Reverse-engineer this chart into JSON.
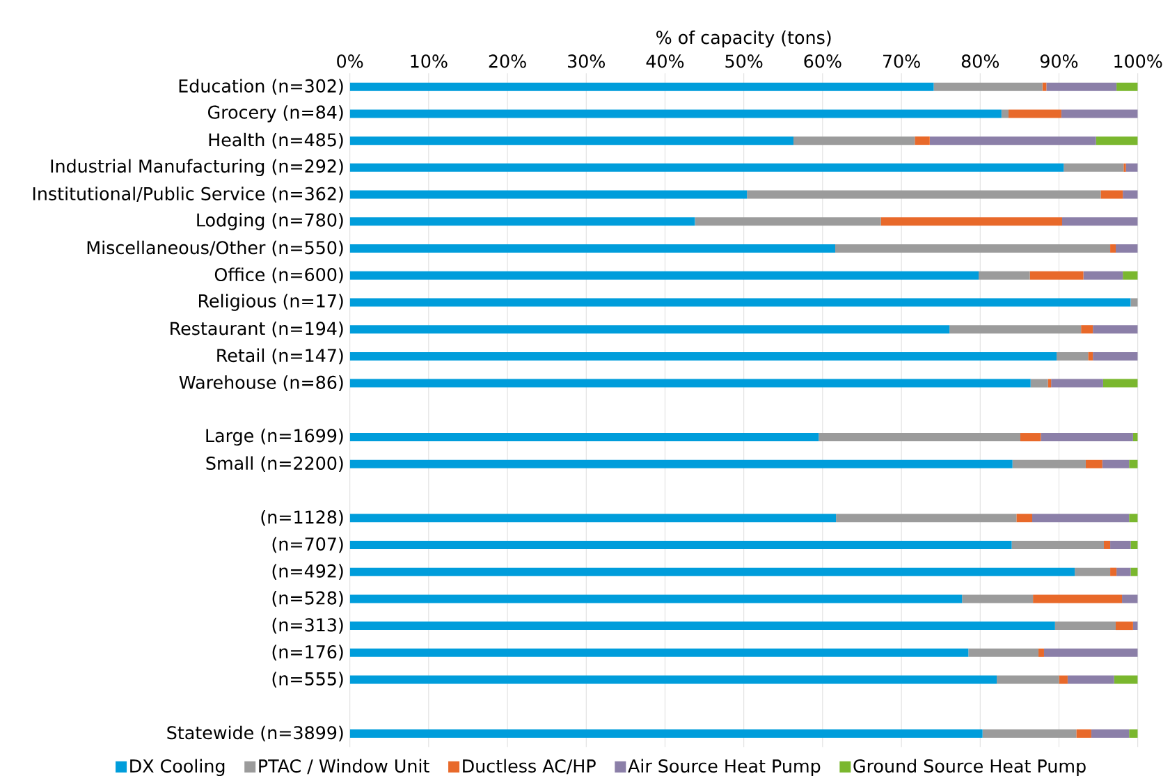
{
  "chart_data": {
    "type": "bar",
    "orientation": "horizontal",
    "stacked": true,
    "xlabel": "% of capacity (tons)",
    "categories": [
      "Education (n=302)",
      "Grocery (n=84)",
      "Health (n=485)",
      "Industrial Manufacturing (n=292)",
      "Institutional/Public Service (n=362)",
      "Lodging (n=780)",
      "Miscellaneous/Other (n=550)",
      "Office (n=600)",
      "Religious (n=17)",
      "Restaurant (n=194)",
      "Retail (n=147)",
      "Warehouse (n=86)",
      null,
      "Large (n=1699)",
      "Small (n=2200)",
      null,
      "(n=1128)",
      "(n=707)",
      "(n=492)",
      "(n=528)",
      "(n=313)",
      "(n=176)",
      "(n=555)",
      null,
      "Statewide (n=3899)"
    ],
    "series": [
      {
        "name": "DX Cooling",
        "color": "#009ddb",
        "values": [
          74.1,
          82.7,
          56.3,
          90.6,
          50.4,
          43.8,
          61.6,
          79.8,
          99.1,
          76.1,
          89.7,
          86.4,
          null,
          59.5,
          84.1,
          null,
          61.7,
          84.0,
          92.0,
          77.7,
          89.5,
          78.5,
          82.1,
          null,
          80.3
        ]
      },
      {
        "name": "PTAC / Window Unit",
        "color": "#9b9b9b",
        "values": [
          13.8,
          0.9,
          15.4,
          7.6,
          44.9,
          23.6,
          34.9,
          6.5,
          0.9,
          16.7,
          4.0,
          2.2,
          null,
          25.6,
          9.3,
          null,
          22.9,
          11.7,
          4.5,
          9.0,
          7.7,
          8.9,
          7.9,
          null,
          11.9
        ]
      },
      {
        "name": "Ductless AC/HP",
        "color": "#e8692a",
        "values": [
          0.5,
          6.7,
          1.9,
          0.3,
          2.8,
          23.0,
          0.7,
          6.8,
          0,
          1.5,
          0.6,
          0.4,
          null,
          2.6,
          2.1,
          null,
          2.0,
          0.8,
          0.8,
          11.3,
          2.2,
          0.7,
          1.1,
          null,
          1.9
        ]
      },
      {
        "name": "Air Source Heat Pump",
        "color": "#8b7fa8",
        "values": [
          8.9,
          9.7,
          21.1,
          1.5,
          1.9,
          9.6,
          2.8,
          5.0,
          0,
          5.7,
          5.7,
          6.6,
          null,
          11.7,
          3.4,
          null,
          12.3,
          2.6,
          1.8,
          2.0,
          0.6,
          11.9,
          5.9,
          null,
          4.8
        ]
      },
      {
        "name": "Ground Source Heat Pump",
        "color": "#7ab72e",
        "values": [
          2.7,
          0,
          5.3,
          0,
          0,
          0,
          0,
          1.9,
          0,
          0,
          0,
          4.4,
          null,
          0.6,
          1.1,
          null,
          1.1,
          0.9,
          0.9,
          0,
          0,
          0,
          3.0,
          null,
          1.1
        ]
      }
    ],
    "xlim": [
      0,
      100
    ],
    "xticks": [
      {
        "value": 0,
        "label": "0%"
      },
      {
        "value": 10,
        "label": "10%"
      },
      {
        "value": 20,
        "label": "20%"
      },
      {
        "value": 30,
        "label": "30%"
      },
      {
        "value": 40,
        "label": "40%"
      },
      {
        "value": 50,
        "label": "50%"
      },
      {
        "value": 60,
        "label": "60%"
      },
      {
        "value": 70,
        "label": "70%"
      },
      {
        "value": 80,
        "label": "80%"
      },
      {
        "value": 90,
        "label": "90%"
      },
      {
        "value": 100,
        "label": "100%"
      }
    ],
    "grid": "x",
    "legend": "bottom"
  }
}
